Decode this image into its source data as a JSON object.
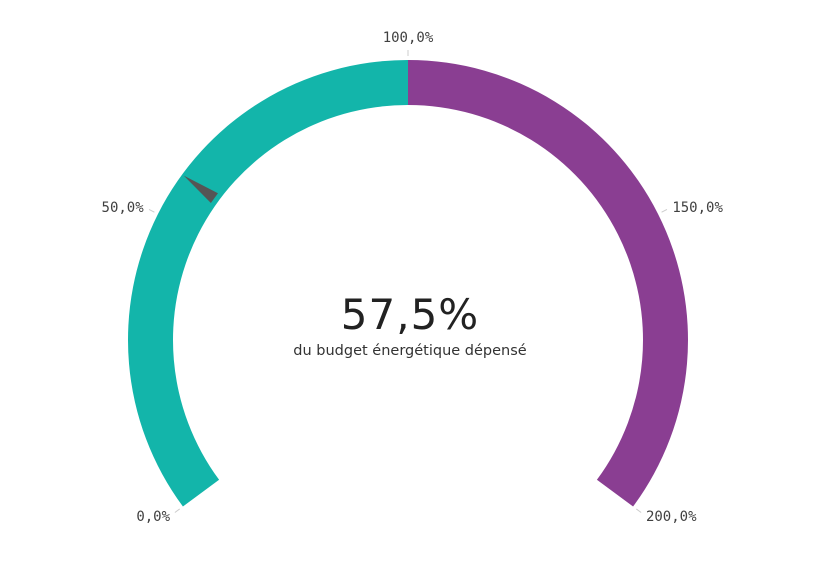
{
  "chart_data": {
    "type": "gauge",
    "value": 57.5,
    "value_label": "57,5%",
    "subtitle": "du budget énergétique dépensé",
    "min": 0,
    "max": 200,
    "ticks": [
      {
        "value": 0,
        "label": "0,0%"
      },
      {
        "value": 50,
        "label": "50,0%"
      },
      {
        "value": 100,
        "label": "100,0%"
      },
      {
        "value": 150,
        "label": "150,0%"
      },
      {
        "value": 200,
        "label": "200,0%"
      }
    ],
    "segments": [
      {
        "from": 0,
        "to": 100,
        "color": "#13b5aa"
      },
      {
        "from": 100,
        "to": 200,
        "color": "#8a3e92"
      }
    ],
    "needle_color": "#555555"
  },
  "kpi": {
    "value": "57,5%",
    "label": "du budget énergétique dépensé"
  }
}
